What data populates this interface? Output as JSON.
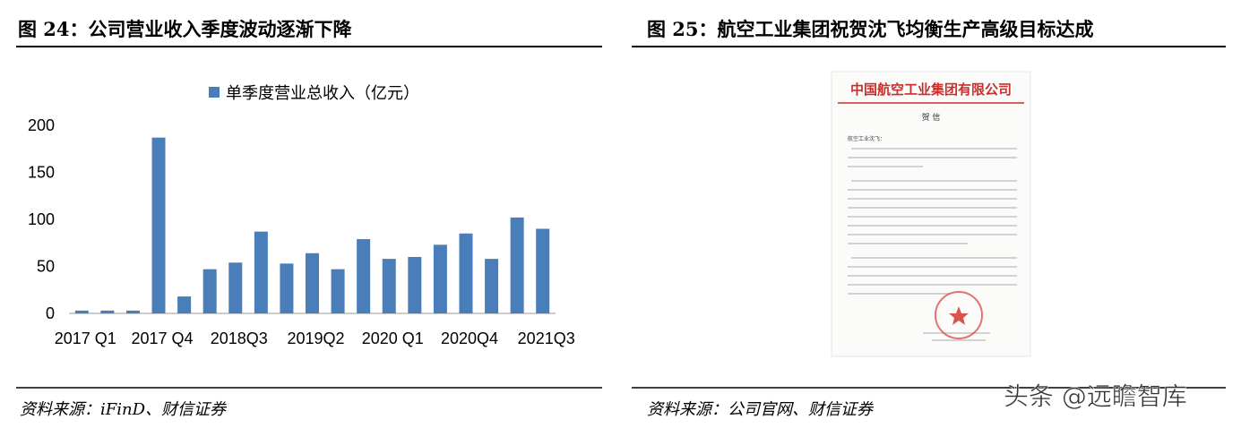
{
  "left_panel": {
    "header": "图 24：公司营业收入季度波动逐渐下降",
    "source": "资料来源：iFinD、财信证券"
  },
  "chart_data": {
    "type": "bar",
    "legend": "单季度营业总收入（亿元）",
    "color": "#4a7ebb",
    "categories": [
      "2017 Q1",
      null,
      null,
      "2017 Q4",
      null,
      null,
      "2018Q3",
      null,
      null,
      "2019Q2",
      null,
      null,
      "2020 Q1",
      null,
      null,
      "2020Q4",
      null,
      null,
      "2021Q3"
    ],
    "values": [
      3,
      3,
      3,
      187,
      18,
      47,
      54,
      87,
      53,
      64,
      47,
      79,
      58,
      60,
      73,
      85,
      58,
      102,
      90
    ],
    "ylim": [
      0,
      200
    ],
    "yticks": [
      0,
      50,
      100,
      150,
      200
    ],
    "grid": false
  },
  "right_panel": {
    "header": "图 25：航空工业集团祝贺沈飞均衡生产高级目标达成",
    "source": "资料来源：公司官网、财信证券",
    "letter": {
      "title": "中国航空工业集团有限公司",
      "heading": "贺 信",
      "greeting": "航空工业沈飞："
    }
  },
  "watermark": "头条 @远瞻智库"
}
